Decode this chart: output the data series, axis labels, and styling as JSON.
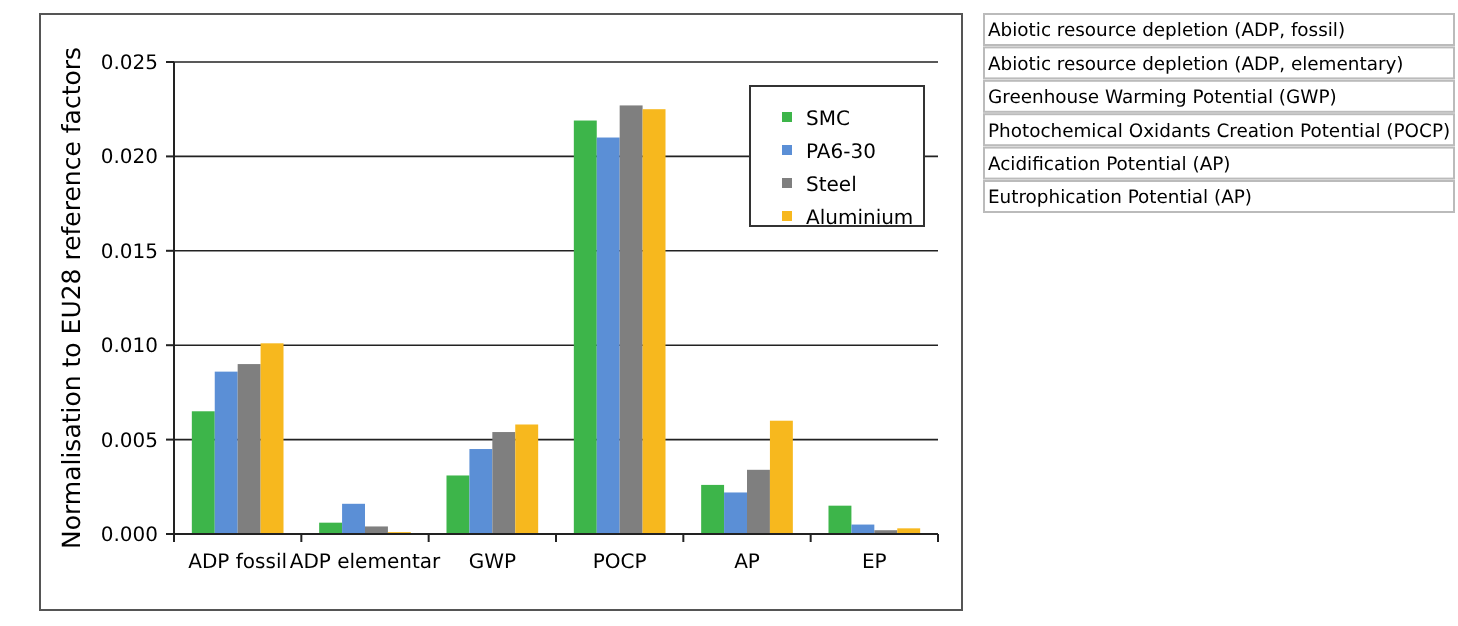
{
  "chart_data": {
    "type": "bar",
    "ylabel": "Normalisation to EU28 reference factors",
    "categories": [
      "ADP fossil",
      "ADP elementar",
      "GWP",
      "POCP",
      "AP",
      "EP"
    ],
    "series": [
      {
        "name": "SMC",
        "color": "#3db54a",
        "values": [
          0.0065,
          0.0006,
          0.0031,
          0.0219,
          0.0026,
          0.0015
        ]
      },
      {
        "name": "PA6-30",
        "color": "#5b8fd6",
        "values": [
          0.0086,
          0.0016,
          0.0045,
          0.021,
          0.0022,
          0.0005
        ]
      },
      {
        "name": "Steel",
        "color": "#7f7f7f",
        "values": [
          0.009,
          0.0004,
          0.0054,
          0.0227,
          0.0034,
          0.0002
        ]
      },
      {
        "name": "Aluminium",
        "color": "#f7b81e",
        "values": [
          0.0101,
          0.0001,
          0.0058,
          0.0225,
          0.006,
          0.0003
        ]
      }
    ],
    "ylim": [
      0,
      0.025
    ],
    "yticks": [
      {
        "value": 0,
        "label": "0.000"
      },
      {
        "value": 0.005,
        "label": "0.005"
      },
      {
        "value": 0.01,
        "label": "0.010"
      },
      {
        "value": 0.015,
        "label": "0.015"
      },
      {
        "value": 0.02,
        "label": "0.020"
      },
      {
        "value": 0.025,
        "label": "0.025"
      }
    ],
    "grid": "y",
    "legend": "top right",
    "annotations": [
      "Abiotic resource depletion (ADP, fossil)",
      "Abiotic resource depletion (ADP, elementary)",
      "Greenhouse Warming Potential (GWP)",
      "Photochemical Oxidants Creation Potential (POCP)",
      "Acidification Potential (AP)",
      "Eutrophication Potential (AP)"
    ]
  }
}
